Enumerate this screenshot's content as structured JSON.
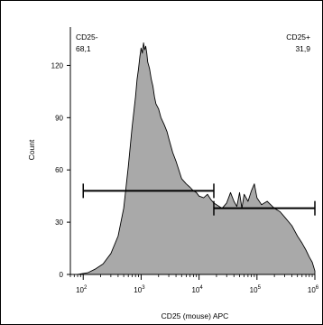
{
  "chart_data": {
    "type": "area",
    "title": "",
    "xlabel": "CD25 (mouse) APC",
    "ylabel": "Count",
    "x_scale": "log",
    "xlim": [
      60,
      1000000
    ],
    "ylim": [
      0,
      142
    ],
    "x_ticks": [
      {
        "value": 100,
        "base": "10",
        "exp": "2"
      },
      {
        "value": 1000,
        "base": "10",
        "exp": "3"
      },
      {
        "value": 10000,
        "base": "10",
        "exp": "4"
      },
      {
        "value": 100000,
        "base": "10",
        "exp": "5"
      },
      {
        "value": 1000000,
        "base": "10",
        "exp": "6"
      }
    ],
    "y_ticks": [
      0,
      30,
      60,
      90,
      120
    ],
    "fill_color": "#a9a9a9",
    "x": [
      60,
      80,
      120,
      160,
      220,
      300,
      400,
      500,
      600,
      700,
      800,
      850,
      900,
      950,
      1000,
      1050,
      1100,
      1150,
      1200,
      1250,
      1300,
      1350,
      1400,
      1500,
      1600,
      1700,
      1800,
      2000,
      2200,
      2500,
      2800,
      3000,
      3500,
      4000,
      5000,
      6000,
      7000,
      8000,
      9000,
      10000,
      12000,
      14000,
      16000,
      18000,
      20000,
      25000,
      30000,
      35000,
      40000,
      45000,
      50000,
      55000,
      60000,
      70000,
      80000,
      90000,
      100000,
      120000,
      150000,
      200000,
      250000,
      300000,
      400000,
      500000,
      600000,
      700000,
      800000,
      900000,
      1000000
    ],
    "values": [
      0,
      0,
      1,
      3,
      6,
      12,
      22,
      38,
      62,
      85,
      102,
      112,
      118,
      125,
      130,
      127,
      133,
      129,
      131,
      127,
      122,
      120,
      118,
      112,
      108,
      102,
      98,
      95,
      90,
      86,
      82,
      78,
      70,
      65,
      55,
      52,
      50,
      48,
      47,
      45,
      44,
      46,
      43,
      41,
      40,
      38,
      41,
      47,
      42,
      39,
      47,
      38,
      46,
      42,
      48,
      52,
      44,
      40,
      42,
      38,
      36,
      33,
      28,
      22,
      18,
      14,
      10,
      7,
      2
    ],
    "gates": [
      {
        "name": "CD25-",
        "value": "68,1",
        "from": 100,
        "to": 18000,
        "level": 48
      },
      {
        "name": "CD25+",
        "value": "31,9",
        "from": 18000,
        "to": 1000000,
        "level": 38
      }
    ]
  }
}
